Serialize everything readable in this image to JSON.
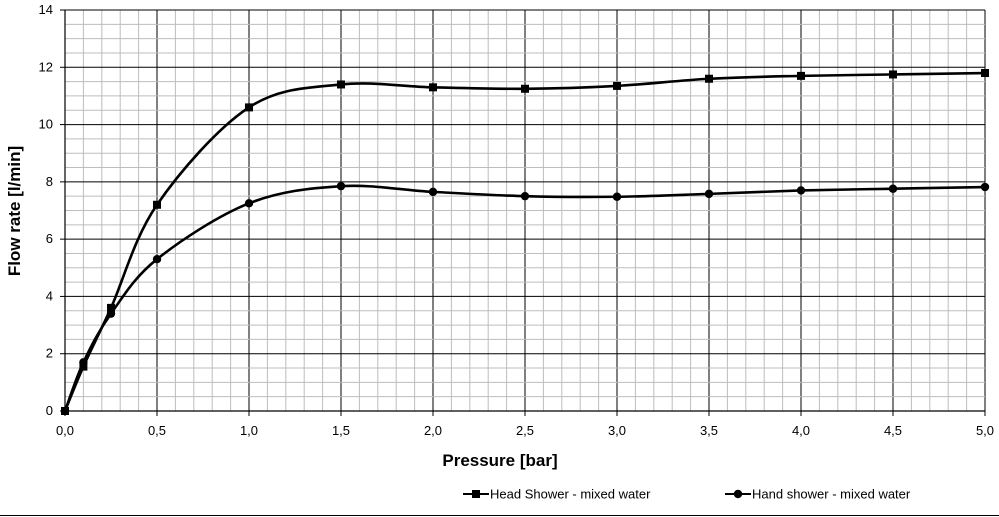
{
  "chart_data": {
    "type": "line",
    "xlabel": "Pressure [bar]",
    "ylabel": "Flow rate [l/min]",
    "xlim": [
      0,
      5
    ],
    "ylim": [
      0,
      14
    ],
    "x_ticks": [
      0,
      0.5,
      1.0,
      1.5,
      2.0,
      2.5,
      3.0,
      3.5,
      4.0,
      4.5,
      5.0
    ],
    "x_tick_labels": [
      "0,0",
      "0,5",
      "1,0",
      "1,5",
      "2,0",
      "2,5",
      "3,0",
      "3,5",
      "4,0",
      "4,5",
      "5,0"
    ],
    "y_ticks": [
      0,
      2,
      4,
      6,
      8,
      10,
      12,
      14
    ],
    "y_tick_labels": [
      "0",
      "2",
      "4",
      "6",
      "8",
      "10",
      "12",
      "14"
    ],
    "grid": true,
    "legend_position": "bottom-right",
    "series": [
      {
        "name": "Head Shower - mixed water",
        "marker": "square",
        "color": "#000000",
        "x": [
          0,
          0.1,
          0.25,
          0.5,
          1.0,
          1.5,
          2.0,
          2.5,
          3.0,
          3.5,
          4.0,
          4.5,
          5.0
        ],
        "y": [
          0,
          1.55,
          3.6,
          7.2,
          10.6,
          11.4,
          11.3,
          11.25,
          11.35,
          11.6,
          11.7,
          11.75,
          11.8
        ]
      },
      {
        "name": "Hand shower - mixed water",
        "marker": "circle",
        "color": "#000000",
        "x": [
          0,
          0.1,
          0.25,
          0.5,
          1.0,
          1.5,
          2.0,
          2.5,
          3.0,
          3.5,
          4.0,
          4.5,
          5.0
        ],
        "y": [
          0,
          1.7,
          3.4,
          5.3,
          7.25,
          7.85,
          7.65,
          7.5,
          7.48,
          7.58,
          7.7,
          7.76,
          7.82
        ]
      }
    ]
  }
}
